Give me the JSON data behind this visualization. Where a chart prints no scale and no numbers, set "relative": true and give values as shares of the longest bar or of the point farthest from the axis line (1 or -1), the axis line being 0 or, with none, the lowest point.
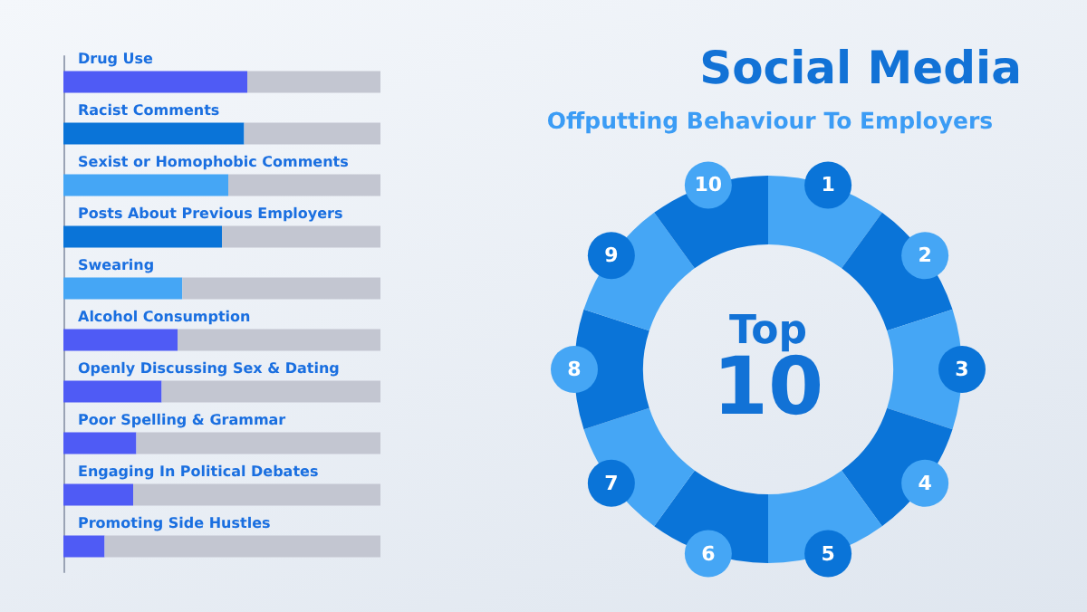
{
  "chart_data": [
    {
      "type": "bar",
      "orientation": "horizontal",
      "stacked": true,
      "relative": true,
      "grid": false,
      "tick_labels": "y",
      "categories": [
        "Drug Use",
        "Racist Comments",
        "Sexist or Homophobic Comments",
        "Posts About Previous Employers",
        "Swearing",
        "Alcohol Consumption",
        "Openly Discussing Sex & Dating",
        "Poor Spelling & Grammar",
        "Engaging In Political Debates",
        "Promoting Side Hustles"
      ],
      "series": [
        {
          "values": [
            0.58,
            0.57,
            0.52,
            0.5,
            0.375,
            0.36,
            0.31,
            0.23,
            0.22,
            0.13
          ],
          "colors": [
            "#4f5bf5",
            "#0a74d8",
            "#45a6f5",
            "#0a74d8",
            "#45a6f5",
            "#4f5bf5",
            "#4f5bf5",
            "#4f5bf5",
            "#4f5bf5",
            "#4f5bf5"
          ]
        },
        {
          "values": [
            0.42,
            0.43,
            0.48,
            0.5,
            0.625,
            0.64,
            0.69,
            0.77,
            0.78,
            0.87
          ],
          "color": "#c3c6d1"
        }
      ]
    },
    {
      "type": "other",
      "title": "Social Media",
      "subtitle": "Offputting Behaviour To Employers",
      "categories": [
        "1",
        "2",
        "3",
        "4",
        "5",
        "6",
        "7",
        "8",
        "9",
        "10"
      ],
      "annotations": [
        "Top",
        "10"
      ]
    }
  ]
}
